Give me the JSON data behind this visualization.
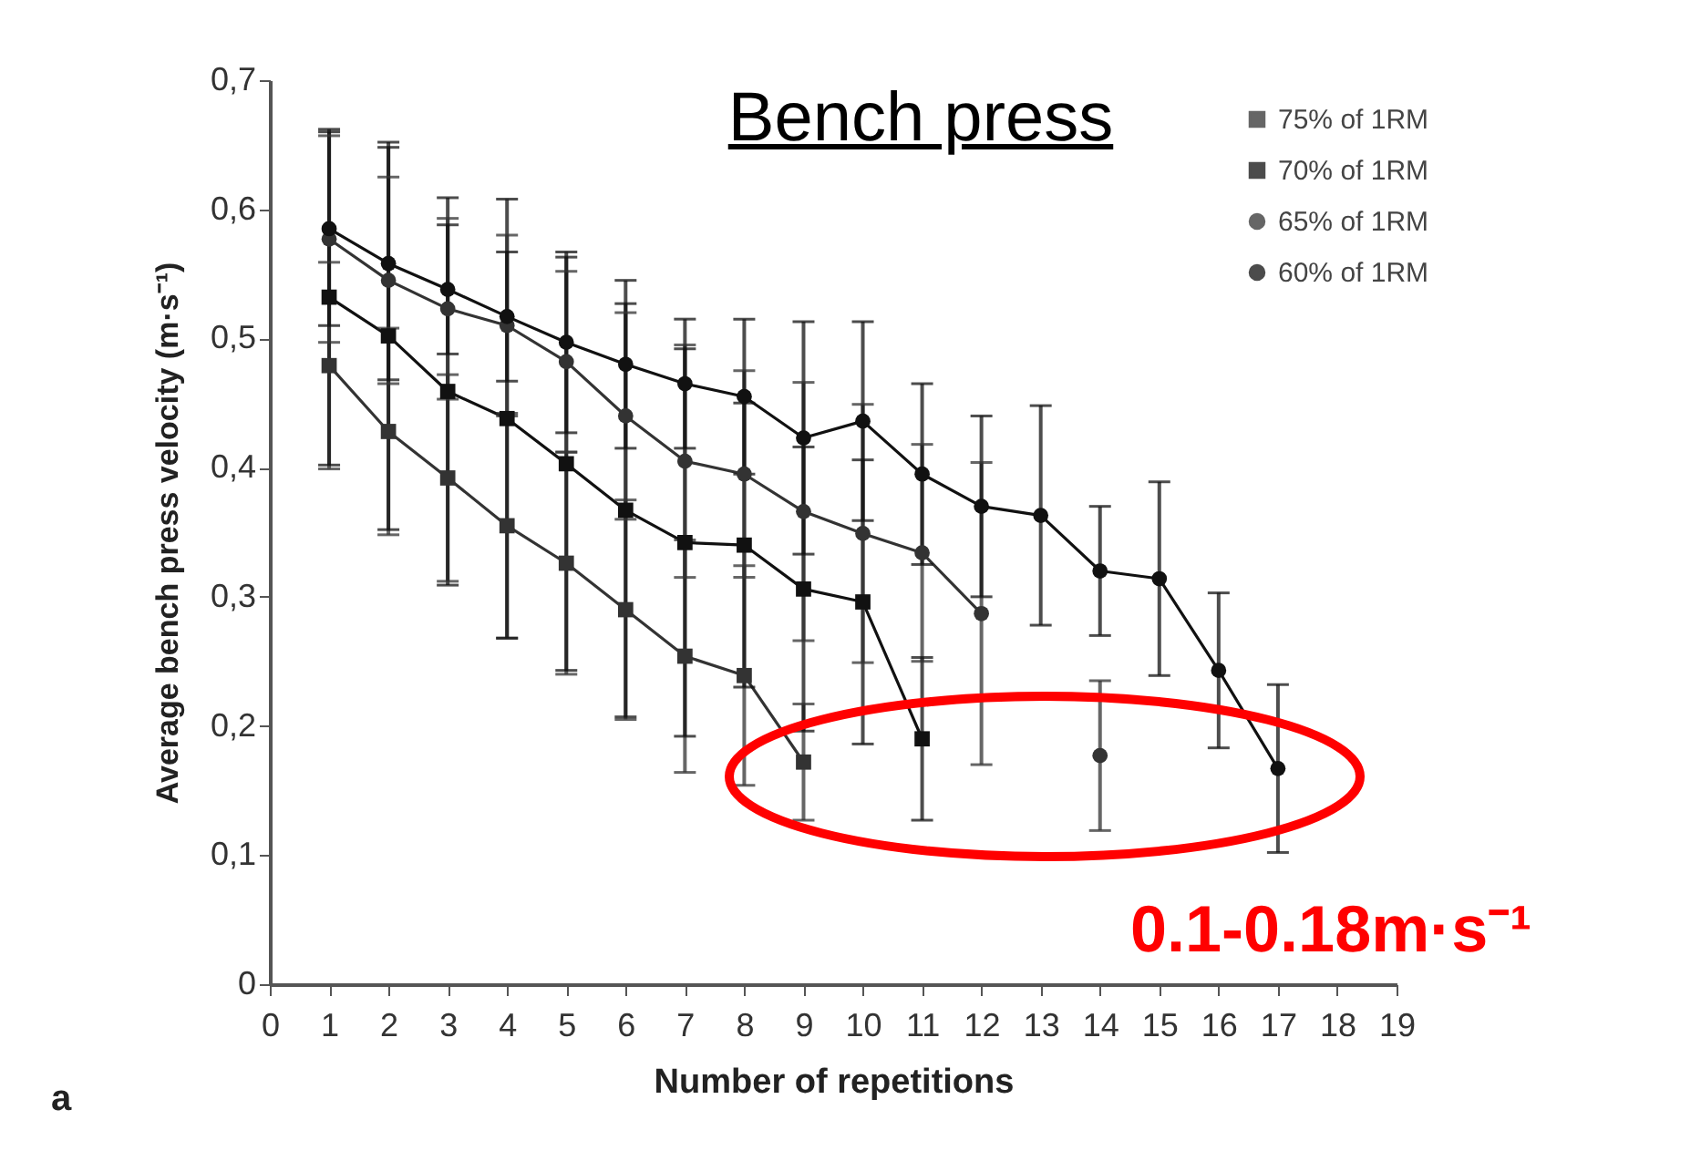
{
  "chart_data": {
    "type": "line",
    "title": "Bench press",
    "xlabel": "Number of repetitions",
    "ylabel": "Average bench press velocity (m·s⁻¹)",
    "annotations": [
      "0.1-0.18m·s⁻¹",
      "a"
    ],
    "xlim": [
      0,
      19
    ],
    "xticks": [
      0,
      1,
      2,
      3,
      4,
      5,
      6,
      7,
      8,
      9,
      10,
      11,
      12,
      13,
      14,
      15,
      16,
      17,
      18,
      19
    ],
    "ylim": [
      0,
      0.7
    ],
    "yticks": [
      0,
      {
        "value": 0.1,
        "label": "0,1"
      },
      {
        "value": 0.2,
        "label": "0,2"
      },
      {
        "value": 0.3,
        "label": "0,3"
      },
      {
        "value": 0.4,
        "label": "0,4"
      },
      {
        "value": 0.5,
        "label": "0,5"
      },
      {
        "value": 0.6,
        "label": "0,6"
      },
      {
        "value": 0.7,
        "label": "0,7"
      }
    ],
    "grid": false,
    "legend": "top right",
    "line_style": "solid",
    "series": [
      {
        "name": "75% of 1RM",
        "color": "#333333",
        "marker": "square",
        "x": [
          1,
          2,
          3,
          4,
          5,
          6,
          7,
          8,
          9
        ],
        "values": [
          0.479,
          0.428,
          0.392,
          0.355,
          0.326,
          0.29,
          0.254,
          0.239,
          0.172
        ],
        "errors": [
          0.08,
          0.08,
          0.08,
          0.087,
          0.086,
          0.085,
          0.09,
          0.085,
          0.045
        ]
      },
      {
        "name": "70% of 1RM",
        "color": "#111111",
        "marker": "square",
        "x": [
          1,
          2,
          3,
          4,
          5,
          6,
          7,
          8,
          9,
          10,
          11
        ],
        "values": [
          0.532,
          0.502,
          0.459,
          0.438,
          0.403,
          0.367,
          0.342,
          0.34,
          0.306,
          0.296,
          0.19
        ],
        "errors": [
          0.13,
          0.15,
          0.15,
          0.17,
          0.16,
          0.16,
          0.15,
          0.11,
          0.11,
          0.11,
          0.063
        ]
      },
      {
        "name": "65% of 1RM",
        "color": "#333333",
        "marker": "circle",
        "x": [
          1,
          2,
          3,
          4,
          5,
          6,
          7,
          8,
          9,
          10,
          11,
          12,
          13,
          14
        ],
        "values": [
          0.577,
          0.545,
          0.523,
          0.51,
          0.482,
          0.44,
          0.405,
          0.395,
          0.366,
          0.349,
          0.334,
          0.287,
          null,
          0.177
        ],
        "errors": [
          0.08,
          0.08,
          0.07,
          0.07,
          0.07,
          0.08,
          0.09,
          0.08,
          0.1,
          0.1,
          0.084,
          0.117,
          null,
          0.058
        ]
      },
      {
        "name": "60% of 1RM",
        "color": "#111111",
        "marker": "circle",
        "x": [
          1,
          2,
          3,
          4,
          5,
          6,
          7,
          8,
          9,
          10,
          11,
          12,
          13,
          14,
          15,
          16,
          17
        ],
        "values": [
          0.585,
          0.558,
          0.538,
          0.517,
          0.497,
          0.48,
          0.465,
          0.455,
          0.423,
          0.436,
          0.395,
          0.37,
          0.363,
          0.32,
          0.314,
          0.243,
          0.167
        ],
        "errors": [
          0.075,
          0.09,
          0.05,
          0.05,
          0.07,
          0.065,
          0.05,
          0.06,
          0.09,
          0.077,
          0.07,
          0.07,
          0.085,
          0.05,
          0.075,
          0.06,
          0.065
        ]
      }
    ]
  }
}
